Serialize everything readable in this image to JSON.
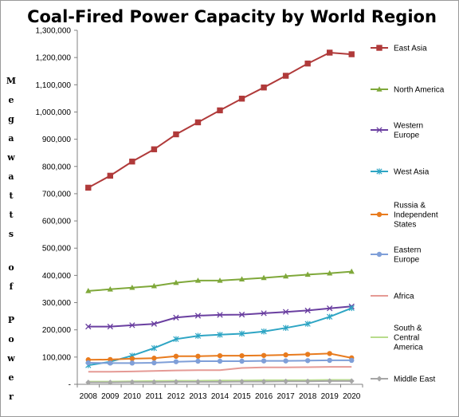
{
  "chart_data": {
    "type": "line",
    "title": "Coal-Fired Power Capacity by World Region",
    "ylabel": "Megawatts of Power",
    "ylabel_words": [
      "Megawatts",
      "of",
      "Power"
    ],
    "xlabel": "",
    "x": [
      2008,
      2009,
      2010,
      2011,
      2012,
      2013,
      2014,
      2015,
      2016,
      2017,
      2018,
      2019,
      2020
    ],
    "ylim": [
      0,
      1300000
    ],
    "yticks": [
      0,
      100000,
      200000,
      300000,
      400000,
      500000,
      600000,
      700000,
      800000,
      900000,
      1000000,
      1100000,
      1200000,
      1300000
    ],
    "ytick_labels": [
      "-",
      "100,000",
      "200,000",
      "300,000",
      "400,000",
      "500,000",
      "600,000",
      "700,000",
      "800,000",
      "900,000",
      "1,000,000",
      "1,100,000",
      "1,200,000",
      "1,300,000"
    ],
    "grid": false,
    "legend_position": "right",
    "series": [
      {
        "name": "East Asia",
        "color": "#b03a3a",
        "marker": "square",
        "values": [
          722000,
          766000,
          818000,
          863000,
          918000,
          962000,
          1006000,
          1049000,
          1090000,
          1133000,
          1178000,
          1218000,
          1212000
        ]
      },
      {
        "name": "North America",
        "color": "#7fa83a",
        "marker": "triangle",
        "values": [
          343000,
          349000,
          355000,
          361000,
          373000,
          381000,
          381000,
          386000,
          391000,
          397000,
          403000,
          408000,
          414000
        ]
      },
      {
        "name": "Western Europe",
        "color": "#6a3fa0",
        "marker": "x",
        "values": [
          212000,
          212000,
          217000,
          222000,
          245000,
          252000,
          255000,
          256000,
          261000,
          266000,
          271000,
          279000,
          286000
        ]
      },
      {
        "name": "West Asia",
        "color": "#2ea5c4",
        "marker": "star",
        "values": [
          70000,
          83000,
          105000,
          133000,
          166000,
          178000,
          182000,
          186000,
          194000,
          207000,
          222000,
          248000,
          280000
        ]
      },
      {
        "name": "Russia & Independent States",
        "color": "#e87b1e",
        "marker": "circle",
        "values": [
          90000,
          91000,
          94000,
          96000,
          103000,
          103000,
          105000,
          105000,
          106000,
          108000,
          110000,
          113000,
          97000
        ]
      },
      {
        "name": "Eastern Europe",
        "color": "#7f9fd8",
        "marker": "circle",
        "values": [
          79000,
          78000,
          78000,
          79000,
          83000,
          85000,
          85000,
          85000,
          86000,
          86000,
          87000,
          88000,
          88000
        ]
      },
      {
        "name": "Africa",
        "color": "#e59a95",
        "marker": "none",
        "values": [
          46000,
          46000,
          47000,
          49000,
          51000,
          52000,
          52000,
          60000,
          62000,
          62000,
          63000,
          64000,
          64000
        ]
      },
      {
        "name": "South & Central America",
        "color": "#b8dc8c",
        "marker": "none",
        "values": [
          10000,
          10000,
          11000,
          12000,
          13000,
          13000,
          14000,
          14000,
          15000,
          15000,
          15000,
          16000,
          16000
        ]
      },
      {
        "name": "Middle East",
        "color": "#a6a6a6",
        "marker": "diamond",
        "values": [
          7000,
          7000,
          8000,
          8000,
          9000,
          9000,
          9000,
          10000,
          10000,
          11000,
          11000,
          12000,
          12000
        ]
      }
    ]
  }
}
